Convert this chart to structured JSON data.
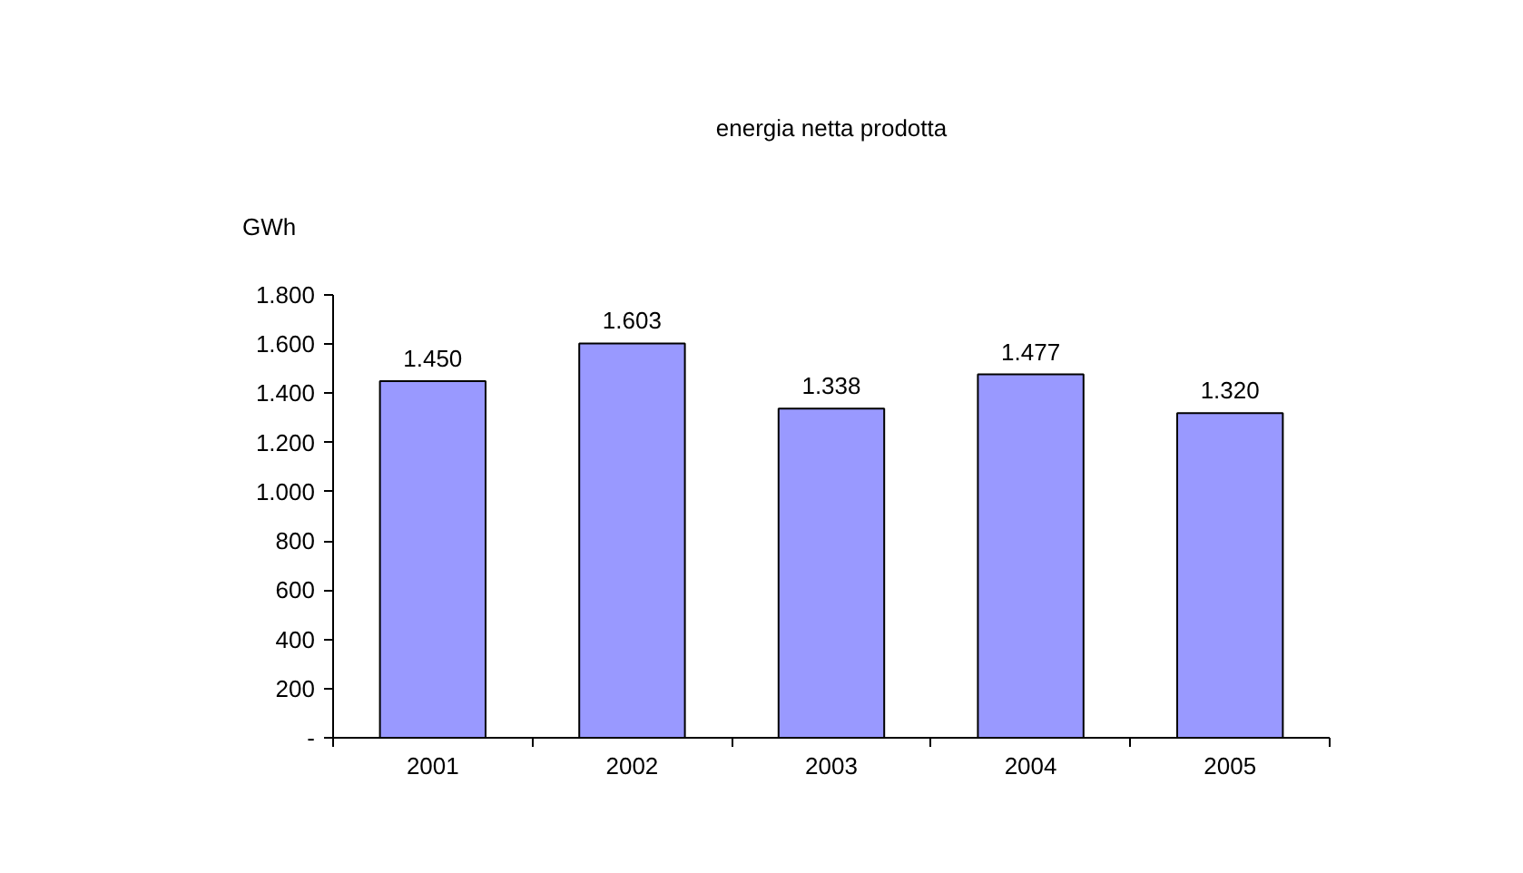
{
  "chart_data": {
    "type": "bar",
    "title": "energia netta prodotta",
    "ylabel": "GWh",
    "categories": [
      "2001",
      "2002",
      "2003",
      "2004",
      "2005"
    ],
    "values": [
      1450,
      1603,
      1338,
      1477,
      1320
    ],
    "value_labels": [
      "1.450",
      "1.603",
      "1.338",
      "1.477",
      "1.320"
    ],
    "color": "#9999ff",
    "ylim": [
      0,
      1800
    ],
    "yticks": [
      {
        "value": 0,
        "label": "-"
      },
      {
        "value": 200,
        "label": "200"
      },
      {
        "value": 400,
        "label": "400"
      },
      {
        "value": 600,
        "label": "600"
      },
      {
        "value": 800,
        "label": "800"
      },
      {
        "value": 1000,
        "label": "1.000"
      },
      {
        "value": 1200,
        "label": "1.200"
      },
      {
        "value": 1400,
        "label": "1.400"
      },
      {
        "value": 1600,
        "label": "1.600"
      },
      {
        "value": 1800,
        "label": "1.800"
      }
    ],
    "grid": false
  }
}
